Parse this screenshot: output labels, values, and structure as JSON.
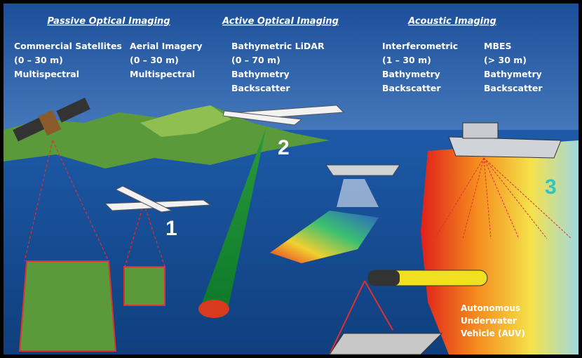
{
  "sections": [
    {
      "title": "Passive Optical Imaging",
      "columns": [
        {
          "lines": [
            "Commercial Satellites",
            "(0 – 30 m)",
            "Multispectral"
          ]
        },
        {
          "lines": [
            "Aerial Imagery",
            "(0 – 30 m)",
            "Multispectral"
          ]
        }
      ]
    },
    {
      "title": "Active Optical Imaging",
      "columns": [
        {
          "lines": [
            "Bathymetric LiDAR",
            "(0 – 70 m)",
            "Bathymetry",
            "Backscatter"
          ]
        }
      ]
    },
    {
      "title": "Acoustic Imaging",
      "columns": [
        {
          "lines": [
            "Interferometric",
            "(1 – 30 m)",
            "Bathymetry",
            "Backscatter"
          ]
        },
        {
          "lines": [
            "MBES",
            "(> 30 m)",
            "Bathymetry",
            "Backscatter"
          ]
        }
      ]
    }
  ],
  "markers": [
    "1",
    "2",
    "3"
  ],
  "auv_label": [
    "Autonomous",
    "Underwater",
    "Vehicle (AUV)"
  ]
}
